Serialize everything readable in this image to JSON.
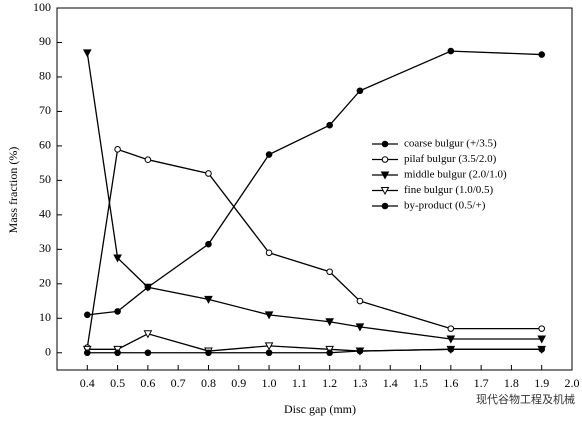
{
  "chart_data": {
    "type": "line",
    "x_label": "Disc gap (mm)",
    "y_label": "Mass fraction (%)",
    "x": [
      0.4,
      0.5,
      0.6,
      0.8,
      1.0,
      1.2,
      1.3,
      1.6,
      1.9
    ],
    "series": [
      {
        "name": "coarse bulgur (+/3.5)",
        "color": "#000000",
        "marker": "circle-filled",
        "values": [
          11,
          12,
          19,
          31.5,
          57.5,
          66,
          76,
          87.5,
          86.5
        ]
      },
      {
        "name": "pilaf bulgur (3.5/2.0)",
        "color": "#000000",
        "marker": "circle-open",
        "values": [
          1.5,
          59,
          56,
          52,
          29,
          23.5,
          15,
          7,
          7
        ]
      },
      {
        "name": "middle bulgur (2.0/1.0)",
        "color": "#000000",
        "marker": "triangle-filled",
        "values": [
          87,
          27.5,
          19,
          15.5,
          11,
          9,
          7.5,
          4,
          4
        ]
      },
      {
        "name": "fine bulgur (1.0/0.5)",
        "color": "#000000",
        "marker": "triangle-open",
        "values": [
          1,
          1,
          5.5,
          0.5,
          2,
          1,
          0.5,
          1,
          1
        ]
      },
      {
        "name": "by-product (0.5/+)",
        "color": "#000000",
        "marker": "circle-filled",
        "values": [
          0,
          0,
          0,
          0,
          0,
          0,
          0.5,
          1,
          1
        ]
      }
    ],
    "xlim": [
      0.3,
      2.0
    ],
    "xticks": [
      0.4,
      0.5,
      0.6,
      0.7,
      0.8,
      0.9,
      {
        "value": 1,
        "label": "1.0"
      },
      1.1,
      1.2,
      1.3,
      1.4,
      1.5,
      1.6,
      1.7,
      1.8,
      1.9,
      {
        "value": 2,
        "label": "2.0"
      }
    ],
    "ylim": [
      -5,
      100
    ],
    "yticks": [
      0,
      10,
      20,
      30,
      40,
      50,
      60,
      70,
      80,
      90,
      100
    ],
    "watermark": "现代谷物工程及机械"
  }
}
